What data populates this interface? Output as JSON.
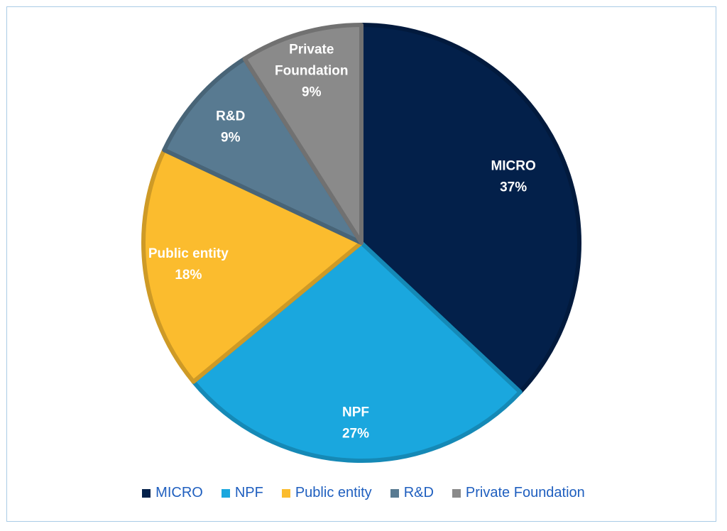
{
  "chart_data": {
    "type": "pie",
    "categories": [
      "MICRO",
      "NPF",
      "Public entity",
      "R&D",
      "Private Foundation"
    ],
    "values": [
      37,
      27,
      18,
      9,
      9
    ],
    "value_labels": [
      "37%",
      "27%",
      "18%",
      "9%",
      "9%"
    ],
    "label_lines": [
      [
        "MICRO",
        "37%"
      ],
      [
        "NPF",
        "27%"
      ],
      [
        "Public entity",
        "18%"
      ],
      [
        "R&D",
        "9%"
      ],
      [
        "Private",
        "Foundation",
        "9%"
      ]
    ],
    "colors": [
      "#03204a",
      "#1aa7de",
      "#fbbc2e",
      "#587a91",
      "#8a8a8a"
    ],
    "title": "",
    "legend_position": "bottom",
    "start_angle_deg": 0,
    "direction": "clockwise"
  },
  "legend": {
    "items": [
      {
        "label": "MICRO",
        "color": "#03204a"
      },
      {
        "label": "NPF",
        "color": "#1aa7de"
      },
      {
        "label": "Public entity",
        "color": "#fbbc2e"
      },
      {
        "label": "R&D",
        "color": "#587a91"
      },
      {
        "label": "Private Foundation",
        "color": "#8a8a8a"
      }
    ]
  }
}
